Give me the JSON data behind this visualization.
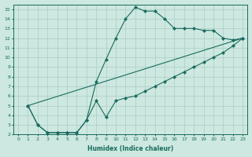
{
  "xlabel": "Humidex (Indice chaleur)",
  "bg_color": "#cce8e0",
  "line_color": "#1a6b5e",
  "grid_color": "#aaccc4",
  "xlim": [
    -0.5,
    23.5
  ],
  "ylim": [
    2,
    15.5
  ],
  "xticks": [
    0,
    1,
    2,
    3,
    4,
    5,
    6,
    7,
    8,
    9,
    10,
    11,
    12,
    13,
    14,
    15,
    16,
    17,
    18,
    19,
    20,
    21,
    22,
    23
  ],
  "yticks": [
    2,
    3,
    4,
    5,
    6,
    7,
    8,
    9,
    10,
    11,
    12,
    13,
    14,
    15
  ],
  "line1_x": [
    1,
    2,
    3,
    4,
    5,
    6,
    7,
    8,
    9,
    10,
    11,
    12,
    13,
    14,
    15,
    16,
    17,
    18,
    19,
    20,
    21,
    22,
    23
  ],
  "line1_y": [
    5,
    3,
    2.2,
    2.2,
    2.2,
    2.2,
    3.5,
    7.5,
    9.8,
    12,
    14,
    15.2,
    14.8,
    14.8,
    14,
    13,
    13,
    13,
    12.8,
    12.8,
    12,
    11.8,
    12
  ],
  "line2_x": [
    1,
    2,
    3,
    4,
    5,
    6,
    7,
    8,
    9,
    10,
    11,
    12,
    13,
    14,
    15,
    16,
    17,
    18,
    19,
    20,
    21,
    22,
    23
  ],
  "line2_y": [
    5,
    3,
    2.2,
    2.2,
    2.2,
    2.2,
    3.5,
    5.5,
    3.8,
    5.5,
    5.8,
    6,
    6.5,
    7,
    7.5,
    8,
    8.5,
    9,
    9.5,
    10,
    10.5,
    11.2,
    12
  ],
  "line3_x": [
    1,
    23
  ],
  "line3_y": [
    5,
    12
  ]
}
